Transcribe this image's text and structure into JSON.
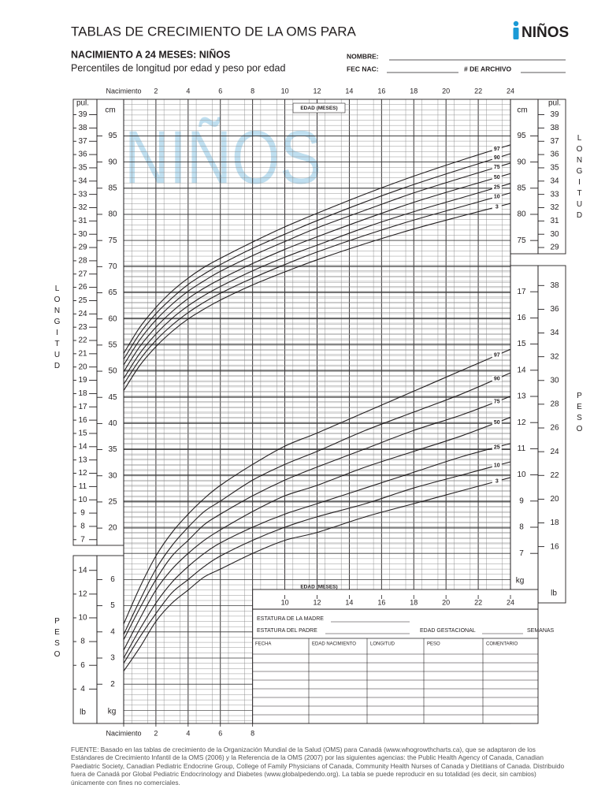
{
  "header": {
    "title": "TABLAS DE CRECIMIENTO DE LA OMS PARA",
    "badge": "NIÑOS",
    "subtitle": "NACIMIENTO A 24 MESES: NIÑOS",
    "description": "Percentiles de longitud por edad y peso por edad"
  },
  "form": {
    "name": "NOMBRE:",
    "birth_date": "FEC NAC:",
    "file_number": "# DE ARCHIVO"
  },
  "watermark": "NIÑOS",
  "chart_data": [
    {
      "type": "line",
      "y_label": "LONGITUD",
      "x_label": "EDAD (MESES)",
      "x": [
        0,
        1,
        2,
        3,
        4,
        5,
        6,
        8,
        10,
        12,
        15,
        18,
        21,
        24
      ],
      "xlim": [
        0,
        24
      ],
      "xticks": [
        {
          "value": 0,
          "label": "Nacimiento"
        },
        2,
        4,
        6,
        8,
        10,
        12,
        14,
        16,
        18,
        20,
        22,
        24
      ],
      "ylim": [
        17,
        102
      ],
      "y_unit": "cm",
      "yticks": [
        20,
        25,
        30,
        35,
        40,
        45,
        50,
        55,
        60,
        65,
        70,
        75,
        80,
        85,
        90,
        95
      ],
      "yticks_right": [
        75,
        80,
        85,
        90,
        95
      ],
      "y2lim": [
        6.69,
        40.16
      ],
      "y2_unit": "pul.",
      "y2ticks": [
        7,
        8,
        9,
        10,
        11,
        12,
        13,
        14,
        15,
        16,
        17,
        18,
        19,
        20,
        21,
        22,
        23,
        24,
        25,
        26,
        27,
        28,
        29,
        30,
        31,
        32,
        33,
        34,
        35,
        36,
        37,
        38,
        39
      ],
      "y2ticks_right": [
        29,
        30,
        31,
        32,
        33,
        34,
        35,
        36,
        37,
        38,
        39
      ],
      "grid": true,
      "series": [
        {
          "name": "97",
          "color": "#231f20",
          "values": [
            53.4,
            58.4,
            62.2,
            65.3,
            67.8,
            69.9,
            71.6,
            74.7,
            77.6,
            80.2,
            83.9,
            87.3,
            90.4,
            93.3
          ]
        },
        {
          "name": "90",
          "color": "#231f20",
          "values": [
            52.3,
            57.2,
            61.0,
            64.0,
            66.6,
            68.6,
            70.4,
            73.5,
            76.2,
            78.8,
            82.4,
            85.7,
            88.7,
            91.6
          ]
        },
        {
          "name": "75",
          "color": "#231f20",
          "values": [
            51.2,
            56.0,
            59.8,
            62.8,
            65.3,
            67.3,
            69.1,
            72.1,
            74.8,
            77.4,
            80.8,
            84.1,
            87.0,
            89.8
          ]
        },
        {
          "name": "50",
          "color": "#231f20",
          "values": [
            49.9,
            54.7,
            58.4,
            61.4,
            63.9,
            65.9,
            67.6,
            70.6,
            73.3,
            75.7,
            79.1,
            82.3,
            85.1,
            87.8
          ]
        },
        {
          "name": "25",
          "color": "#231f20",
          "values": [
            48.6,
            53.4,
            57.1,
            60.1,
            62.5,
            64.5,
            66.2,
            69.2,
            71.8,
            74.1,
            77.5,
            80.5,
            83.2,
            85.9
          ]
        },
        {
          "name": "10",
          "color": "#231f20",
          "values": [
            47.5,
            52.2,
            55.9,
            58.8,
            61.2,
            63.2,
            64.9,
            67.8,
            70.4,
            72.8,
            76.0,
            78.9,
            81.5,
            84.1
          ]
        },
        {
          "name": "3",
          "color": "#231f20",
          "values": [
            46.3,
            51.1,
            54.7,
            57.6,
            60.0,
            61.9,
            63.6,
            66.5,
            69.0,
            71.3,
            74.4,
            77.2,
            79.7,
            82.1
          ]
        }
      ]
    },
    {
      "type": "line",
      "y_label": "PESO",
      "x_label": "EDAD (MESES)",
      "x": [
        0,
        1,
        2,
        3,
        4,
        5,
        6,
        8,
        10,
        12,
        15,
        18,
        21,
        24
      ],
      "xlim": [
        0,
        24
      ],
      "xticks": [
        {
          "value": 0,
          "label": "Nacimiento"
        },
        2,
        4,
        6,
        8,
        10,
        12,
        14,
        16,
        18,
        20,
        22,
        24
      ],
      "ylim": [
        0.5,
        18
      ],
      "y_unit": "kg",
      "yticks": [
        2,
        3,
        4,
        5,
        6
      ],
      "yticks_right": [
        7,
        8,
        9,
        10,
        11,
        12,
        13,
        14,
        15,
        16,
        17
      ],
      "y2lim": [
        1.1,
        39.68
      ],
      "y2_unit": "lb",
      "y2ticks": [
        4,
        6,
        8,
        10,
        12,
        14
      ],
      "y2ticks_right": [
        16,
        18,
        20,
        22,
        24,
        26,
        28,
        30,
        32,
        34,
        36,
        38
      ],
      "grid": true,
      "series": [
        {
          "name": "97",
          "color": "#231f20",
          "values": [
            4.3,
            5.7,
            6.9,
            7.8,
            8.5,
            9.1,
            9.6,
            10.4,
            11.1,
            11.6,
            12.4,
            13.2,
            14.0,
            14.8
          ]
        },
        {
          "name": "90",
          "color": "#231f20",
          "values": [
            3.9,
            5.2,
            6.4,
            7.3,
            8.0,
            8.6,
            9.0,
            9.8,
            10.4,
            10.9,
            11.7,
            12.4,
            13.1,
            13.9
          ]
        },
        {
          "name": "75",
          "color": "#231f20",
          "values": [
            3.7,
            4.9,
            6.0,
            6.9,
            7.5,
            8.1,
            8.5,
            9.2,
            9.8,
            10.3,
            11.0,
            11.7,
            12.3,
            13.0
          ]
        },
        {
          "name": "50",
          "color": "#231f20",
          "values": [
            3.3,
            4.5,
            5.6,
            6.4,
            7.0,
            7.5,
            7.9,
            8.6,
            9.2,
            9.6,
            10.3,
            10.9,
            11.5,
            12.2
          ]
        },
        {
          "name": "25",
          "color": "#231f20",
          "values": [
            3.0,
            4.1,
            5.1,
            5.9,
            6.5,
            7.0,
            7.4,
            8.0,
            8.5,
            8.9,
            9.5,
            10.1,
            10.7,
            11.2
          ]
        },
        {
          "name": "10",
          "color": "#231f20",
          "values": [
            2.8,
            3.8,
            4.7,
            5.5,
            6.0,
            6.5,
            6.9,
            7.5,
            8.0,
            8.4,
            8.9,
            9.5,
            10.0,
            10.5
          ]
        },
        {
          "name": "3",
          "color": "#231f20",
          "values": [
            2.5,
            3.4,
            4.4,
            5.1,
            5.6,
            6.1,
            6.4,
            7.0,
            7.5,
            7.8,
            8.4,
            8.9,
            9.4,
            9.9
          ]
        }
      ]
    }
  ],
  "record_table": {
    "mother_height": "ESTATURA DE LA MADRE",
    "father_height": "ESTATURA DEL PADRE",
    "gestational_age": "EDAD GESTACIONAL",
    "weeks": "SEMANAS",
    "columns": [
      "FECHA",
      "EDAD NACIMIENTO",
      "LONGITUD",
      "PESO",
      "COMENTARIO"
    ]
  },
  "footer": "FUENTE: Basado en las tablas de crecimiento de la Organización Mundial de la Salud (OMS) para Canadá (www.whogrowthcharts.ca), que se adaptaron de los Estándares de Crecimiento Infantil de la OMS (2006) y la Referencia de la OMS (2007) por las siguientes agencias: the Public Health Agency of Canada, Canadian Paediatric Society, Canadian Pediatric Endocrine Group, College of Family Physicians of Canada, Community Health Nurses of Canada y Dietitians of Canada. Distribuido fuera de Canadá por Global Pediatric Endocrinology and Diabetes (www.globalpedendo.org). La tabla se puede reproducir en su totalidad (es decir, sin cambios) únicamente con fines no comerciales."
}
